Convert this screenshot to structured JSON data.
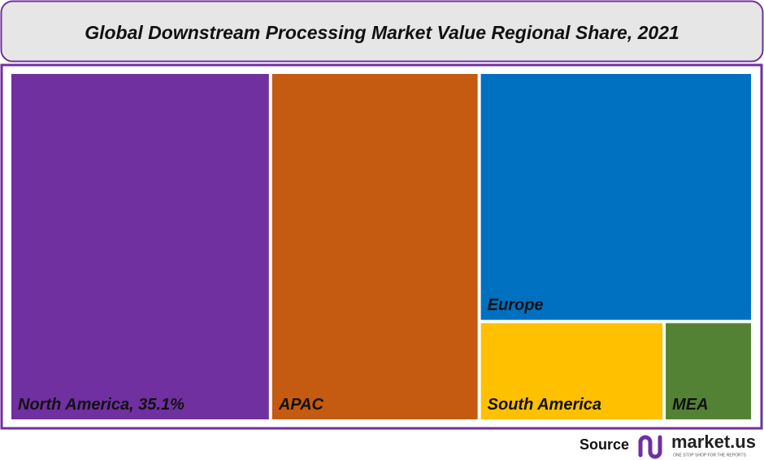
{
  "chart_data": {
    "type": "treemap",
    "title": "Global Downstream Processing Market Value Regional Share, 2021",
    "categories": [
      "North America, 35.1%",
      "APAC",
      "Europe",
      "South America",
      "MEA"
    ],
    "values": [
      35.1,
      28.1,
      26.3,
      7.1,
      3.4
    ],
    "colors": [
      "#7030a0",
      "#c55a11",
      "#0070c0",
      "#ffc000",
      "#548235"
    ]
  },
  "footer": {
    "source": "Source",
    "brand": "market.us",
    "tagline": "ONE STOP SHOP FOR THE REPORTS"
  }
}
